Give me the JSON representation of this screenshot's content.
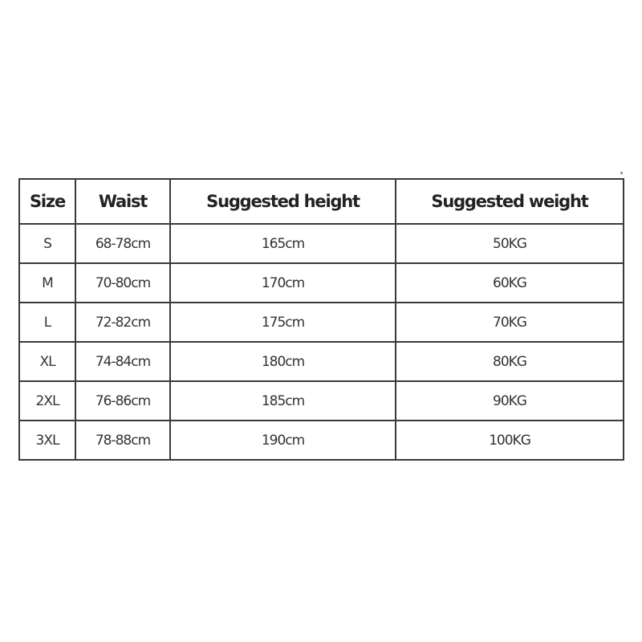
{
  "table": {
    "headers": [
      "Size",
      "Waist",
      "Suggested height",
      "Suggested weight"
    ],
    "rows": [
      [
        "S",
        "68-78cm",
        "165cm",
        "50KG"
      ],
      [
        "M",
        "70-80cm",
        "170cm",
        "60KG"
      ],
      [
        "L",
        "72-82cm",
        "175cm",
        "70KG"
      ],
      [
        "XL",
        "74-84cm",
        "180cm",
        "80KG"
      ],
      [
        "2XL",
        "76-86cm",
        "185cm",
        "90KG"
      ],
      [
        "3XL",
        "78-88cm",
        "190cm",
        "100KG"
      ]
    ]
  }
}
